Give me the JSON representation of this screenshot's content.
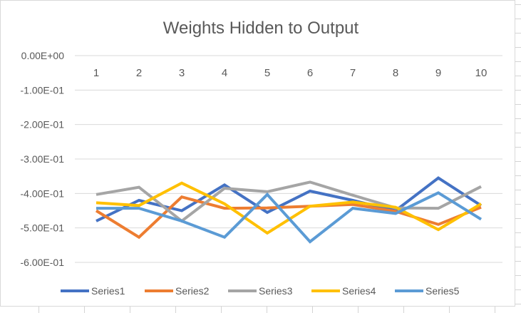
{
  "chart_data": {
    "type": "line",
    "title": "Weights Hidden to Output",
    "xlabel": "",
    "ylabel": "",
    "categories": [
      "1",
      "2",
      "3",
      "4",
      "5",
      "6",
      "7",
      "8",
      "9",
      "10"
    ],
    "ylim": [
      -0.6,
      0
    ],
    "yticks": [
      0,
      -0.1,
      -0.2,
      -0.3,
      -0.4,
      -0.5,
      -0.6
    ],
    "ytick_labels": [
      "0.00E+00",
      "-1.00E-01",
      "-2.00E-01",
      "-3.00E-01",
      "-4.00E-01",
      "-5.00E-01",
      "-6.00E-01"
    ],
    "grid": true,
    "x_axis_labels_position": "top",
    "legend_position": "bottom",
    "series": [
      {
        "name": "Series1",
        "color": "#4472C4",
        "values": [
          -0.48,
          -0.42,
          -0.45,
          -0.375,
          -0.455,
          -0.393,
          -0.42,
          -0.45,
          -0.355,
          -0.435
        ]
      },
      {
        "name": "Series2",
        "color": "#ED7D31",
        "values": [
          -0.45,
          -0.527,
          -0.41,
          -0.443,
          -0.442,
          -0.437,
          -0.432,
          -0.452,
          -0.49,
          -0.44
        ]
      },
      {
        "name": "Series3",
        "color": "#A5A5A5",
        "values": [
          -0.403,
          -0.382,
          -0.48,
          -0.385,
          -0.395,
          -0.367,
          -0.405,
          -0.442,
          -0.443,
          -0.38
        ]
      },
      {
        "name": "Series4",
        "color": "#FFC000",
        "values": [
          -0.427,
          -0.435,
          -0.37,
          -0.43,
          -0.515,
          -0.437,
          -0.425,
          -0.44,
          -0.505,
          -0.43
        ]
      },
      {
        "name": "Series5",
        "color": "#5B9BD5",
        "values": [
          -0.443,
          -0.443,
          -0.48,
          -0.527,
          -0.403,
          -0.54,
          -0.443,
          -0.458,
          -0.398,
          -0.475
        ]
      }
    ]
  }
}
